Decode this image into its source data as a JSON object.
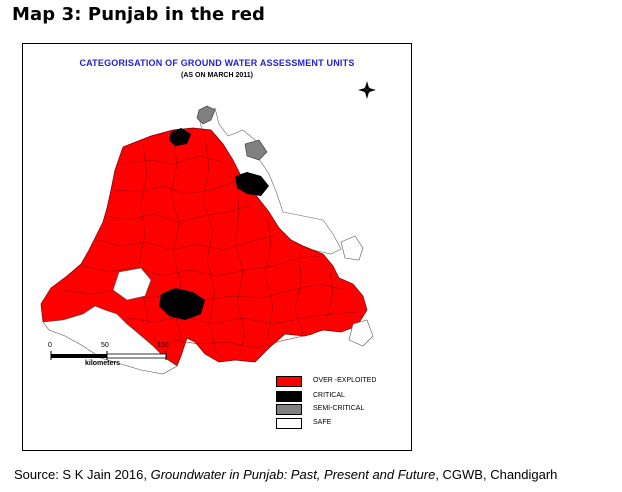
{
  "heading": "Map 3: Punjab  in the red",
  "map": {
    "title": "CATEGORISATION OF GROUND WATER ASSESSMENT UNITS",
    "subtitle": "(AS ON MARCH 2011)",
    "compass_icon": "compass-rose-icon",
    "scale": {
      "tick_0": "0",
      "tick_50": "50",
      "tick_100": "100",
      "units": "kilometers"
    }
  },
  "legend": [
    {
      "label": "OVER -EXPLOITED",
      "color": "#ff0000"
    },
    {
      "label": "CRITICAL",
      "color": "#000000"
    },
    {
      "label": "SEMI-CRITICAL",
      "color": "#808080"
    },
    {
      "label": "SAFE",
      "color": "#ffffff"
    }
  ],
  "source": {
    "prefix": "Source: S K Jain 2016, ",
    "title": "Groundwater in Punjab: Past, Present and Future",
    "suffix": ", CGWB, Chandigarh"
  }
}
